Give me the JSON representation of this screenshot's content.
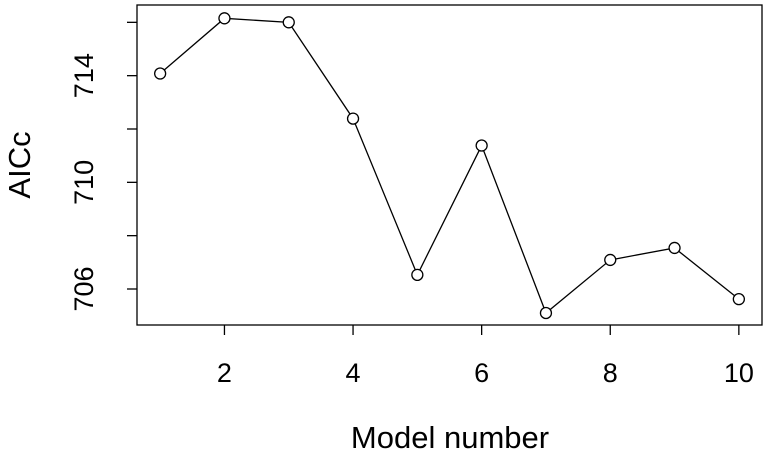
{
  "chart_data": {
    "type": "line",
    "x_label": "Model number",
    "y_label": "AICc",
    "x": [
      1,
      2,
      3,
      4,
      5,
      6,
      7,
      8,
      9,
      10
    ],
    "series": [
      {
        "color": "#000000",
        "values": [
          714.08,
          716.15,
          716.0,
          712.39,
          706.53,
          711.38,
          705.1,
          707.09,
          707.54,
          705.62
        ]
      }
    ],
    "xlim": [
      0.64,
      10.36
    ],
    "xticks": [
      2,
      4,
      6,
      8,
      10
    ],
    "ylim": [
      704.65,
      716.65
    ],
    "yticks": [
      706,
      710,
      714
    ],
    "yminor_ticks": [
      708,
      712,
      716
    ],
    "markers": "open-circle"
  }
}
